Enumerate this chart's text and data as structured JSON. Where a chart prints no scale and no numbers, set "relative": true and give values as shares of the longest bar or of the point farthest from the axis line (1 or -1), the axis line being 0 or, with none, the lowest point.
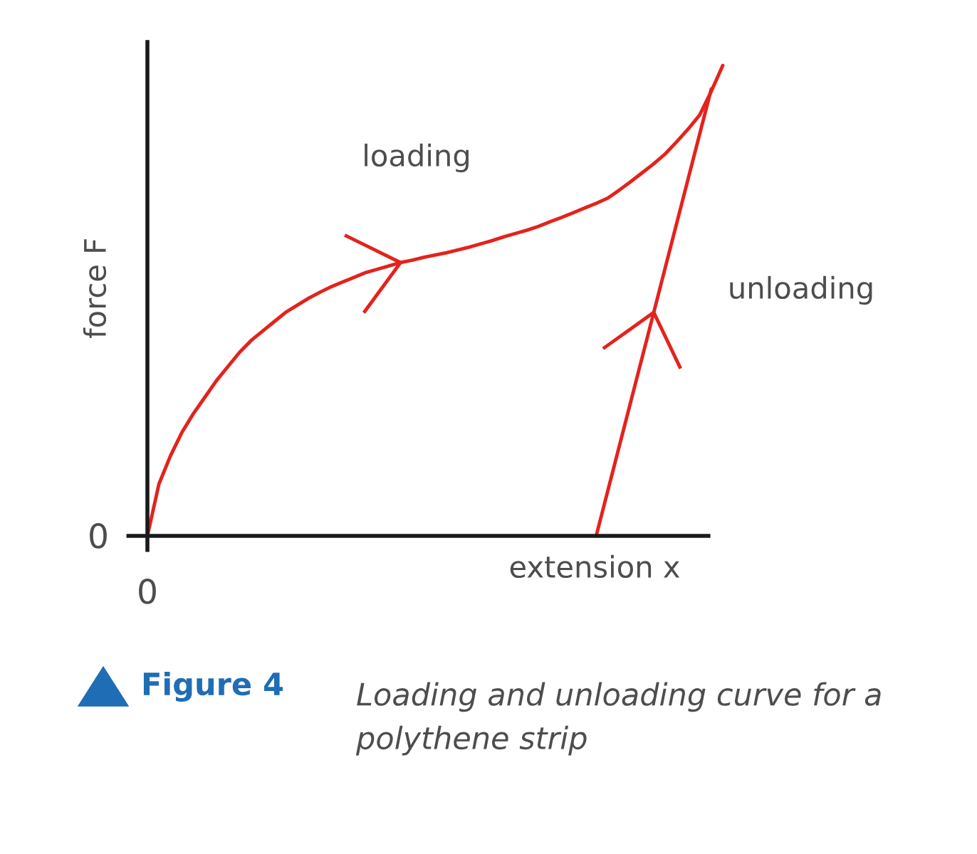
{
  "chart_data": {
    "type": "line",
    "relative": true,
    "xlabel": "extension x",
    "ylabel": "force F",
    "categories": [
      null,
      null,
      null,
      null,
      null,
      null,
      null,
      null,
      null,
      null,
      null,
      null,
      null,
      null,
      null,
      null,
      null,
      null,
      null,
      null,
      null,
      null,
      null,
      null,
      null,
      null,
      null,
      null,
      null,
      null,
      null,
      null,
      null,
      null,
      null,
      null,
      null,
      null,
      null,
      null,
      null,
      null,
      null,
      null,
      null,
      null,
      null,
      null,
      null,
      null,
      null
    ],
    "series": [
      {
        "color": "#e3231c",
        "values": [
          0,
          0.11,
          0.17,
          0.22,
          0.26,
          0.295,
          0.33,
          0.36,
          0.39,
          0.415,
          0.435,
          0.455,
          0.475,
          0.49,
          0.505,
          0.518,
          0.53,
          0.54,
          0.55,
          0.56,
          0.567,
          0.574,
          0.581,
          0.586,
          0.592,
          0.597,
          0.602,
          0.608,
          0.614,
          0.621,
          0.628,
          0.636,
          0.643,
          0.65,
          0.658,
          0.668,
          0.677,
          0.687,
          0.697,
          0.707,
          0.718,
          0.735,
          0.753,
          0.772,
          0.791,
          0.812,
          0.838,
          0.865,
          0.895,
          0.945,
          1.0
        ]
      },
      {
        "color": "#e3231c",
        "values": [
          null,
          null,
          null,
          null,
          null,
          null,
          null,
          null,
          null,
          null,
          null,
          null,
          null,
          null,
          null,
          null,
          null,
          null,
          null,
          null,
          null,
          null,
          null,
          null,
          null,
          null,
          null,
          null,
          null,
          null,
          null,
          null,
          null,
          null,
          null,
          null,
          null,
          null,
          null,
          0,
          0.095,
          0.19,
          0.285,
          0.38,
          0.475,
          0.57,
          0.665,
          0.76,
          0.855,
          0.95,
          null
        ]
      }
    ],
    "annotations": [
      "0",
      "0",
      "loading",
      "unloading",
      "Figure 4",
      "Loading and unloading curve for a polythene strip"
    ],
    "marker": "none",
    "line_style": "solid"
  }
}
